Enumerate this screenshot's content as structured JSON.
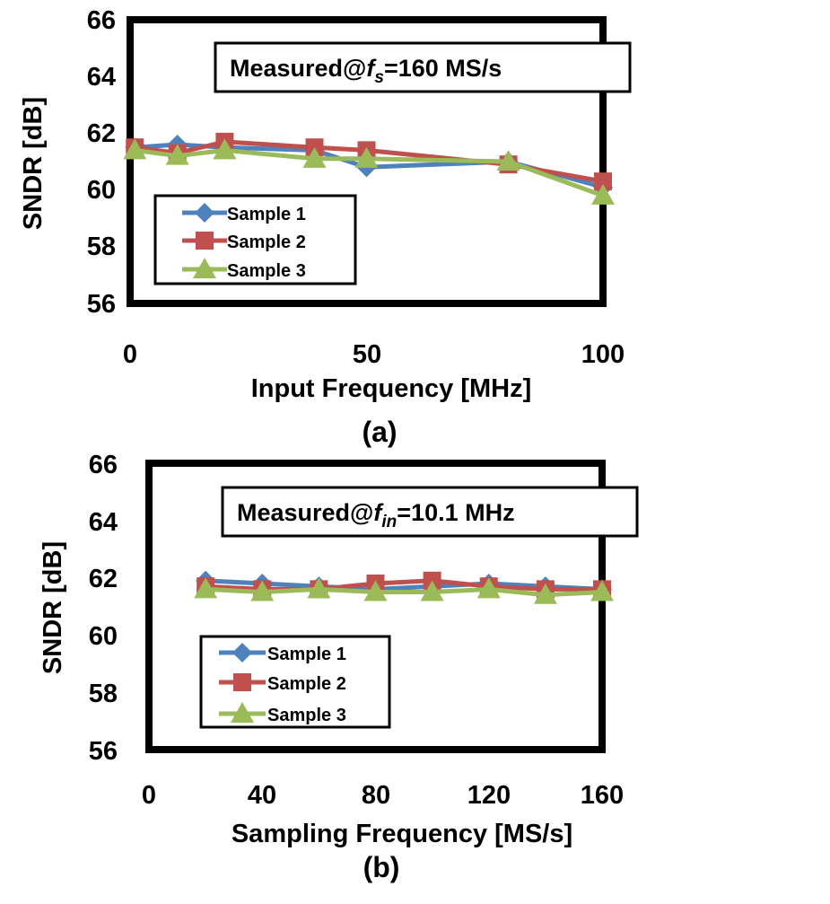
{
  "chart_data": [
    {
      "type": "line",
      "ylabel": "SNDR [dB]",
      "xlabel": "Input Frequency [MHz]",
      "xlim": [
        0,
        100
      ],
      "ylim": [
        56,
        66
      ],
      "xticks": [
        "0",
        "50",
        "100"
      ],
      "yticks": [
        "56",
        "58",
        "60",
        "62",
        "64",
        "66"
      ],
      "annotation": {
        "prefix": "Measured@",
        "var": "f",
        "sub": "s",
        "suffix": "=160 MS/s"
      },
      "caption": "(a)",
      "grid": false,
      "legend_position": "bottom-left",
      "series": [
        {
          "name": "Sample 1",
          "color": "#4f81bd",
          "marker": "diamond",
          "x": [
            1,
            10,
            20,
            39,
            50,
            80,
            100
          ],
          "y": [
            61.5,
            61.6,
            61.5,
            61.4,
            60.8,
            61.0,
            60.1
          ]
        },
        {
          "name": "Sample 2",
          "color": "#c0504d",
          "marker": "square",
          "x": [
            1,
            10,
            20,
            39,
            50,
            80,
            100
          ],
          "y": [
            61.5,
            61.3,
            61.7,
            61.5,
            61.4,
            60.9,
            60.3
          ]
        },
        {
          "name": "Sample 3",
          "color": "#9bbb59",
          "marker": "triangle",
          "x": [
            1,
            10,
            20,
            39,
            50,
            80,
            100
          ],
          "y": [
            61.4,
            61.2,
            61.4,
            61.1,
            61.1,
            61.0,
            59.8
          ]
        }
      ]
    },
    {
      "type": "line",
      "ylabel": "SNDR [dB]",
      "xlabel": "Sampling Frequency [MS/s]",
      "xlim": [
        0,
        160
      ],
      "ylim": [
        56,
        66
      ],
      "xticks": [
        "0",
        "40",
        "80",
        "120",
        "160"
      ],
      "yticks": [
        "56",
        "58",
        "60",
        "62",
        "64",
        "66"
      ],
      "annotation": {
        "prefix": "Measured@",
        "var": "f",
        "sub": "in",
        "suffix": "=10.1 MHz"
      },
      "caption": "(b)",
      "grid": false,
      "legend_position": "bottom-left",
      "series": [
        {
          "name": "Sample 1",
          "color": "#4f81bd",
          "marker": "diamond",
          "x": [
            20,
            40,
            60,
            80,
            100,
            120,
            140,
            160
          ],
          "y": [
            61.9,
            61.8,
            61.7,
            61.6,
            61.7,
            61.8,
            61.7,
            61.6
          ]
        },
        {
          "name": "Sample 2",
          "color": "#c0504d",
          "marker": "square",
          "x": [
            20,
            40,
            60,
            80,
            100,
            120,
            140,
            160
          ],
          "y": [
            61.7,
            61.6,
            61.6,
            61.8,
            61.9,
            61.7,
            61.6,
            61.6
          ]
        },
        {
          "name": "Sample 3",
          "color": "#9bbb59",
          "marker": "triangle",
          "x": [
            20,
            40,
            60,
            80,
            100,
            120,
            140,
            160
          ],
          "y": [
            61.6,
            61.5,
            61.6,
            61.5,
            61.5,
            61.6,
            61.4,
            61.5
          ]
        }
      ]
    }
  ]
}
